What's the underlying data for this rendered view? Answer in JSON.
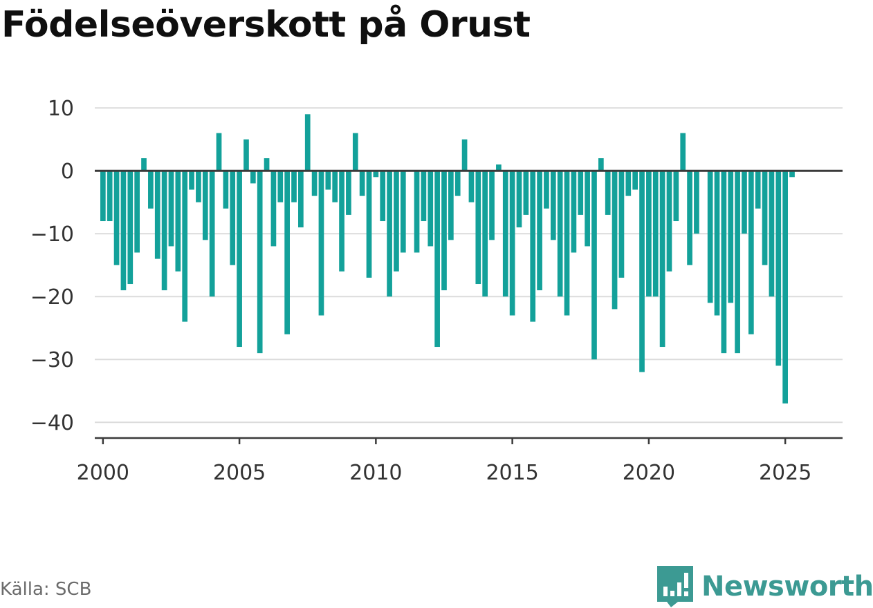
{
  "title": "Födelseöverskott på Orust",
  "source": "Källa: SCB",
  "logo": {
    "text": "Newsworthy",
    "icon": "newsworthy-chart-icon",
    "color": "#3c9a93"
  },
  "chart_data": {
    "type": "bar",
    "bar_color": "#13a19a",
    "x_start": 2000.0,
    "x_step": 0.25,
    "values": [
      -8,
      -8,
      -15,
      -19,
      -18,
      -13,
      2,
      -6,
      -14,
      -19,
      -12,
      -16,
      -24,
      -3,
      -5,
      -11,
      -20,
      6,
      -6,
      -15,
      -28,
      5,
      -2,
      -29,
      2,
      -12,
      -5,
      -26,
      -5,
      -9,
      9,
      -4,
      -23,
      -3,
      -5,
      -16,
      -7,
      6,
      -4,
      -17,
      -1,
      -8,
      -20,
      -16,
      -13,
      0,
      -13,
      -8,
      -12,
      -28,
      -19,
      -11,
      -4,
      5,
      -5,
      -18,
      -20,
      -11,
      1,
      -20,
      -23,
      -9,
      -7,
      -24,
      -19,
      -6,
      -11,
      -20,
      -23,
      -13,
      -7,
      -12,
      -30,
      2,
      -7,
      -22,
      -17,
      -4,
      -3,
      -32,
      -20,
      -20,
      -28,
      -16,
      -8,
      6,
      -15,
      -10,
      0,
      -21,
      -23,
      -29,
      -21,
      -29,
      -10,
      -26,
      -6,
      -15,
      -20,
      -31,
      -37,
      -1
    ],
    "xlim": [
      1999.7,
      2027.1
    ],
    "ylim": [
      -42.5,
      12
    ],
    "yticks": [
      10,
      0,
      -10,
      -20,
      -30,
      -40
    ],
    "ytick_labels": [
      "10",
      "0",
      "−10",
      "−20",
      "−30",
      "−40"
    ],
    "xticks": [
      2000,
      2005,
      2010,
      2015,
      2020,
      2025
    ],
    "xtick_labels": [
      "2000",
      "2005",
      "2010",
      "2015",
      "2020",
      "2025"
    ],
    "grid": true
  }
}
